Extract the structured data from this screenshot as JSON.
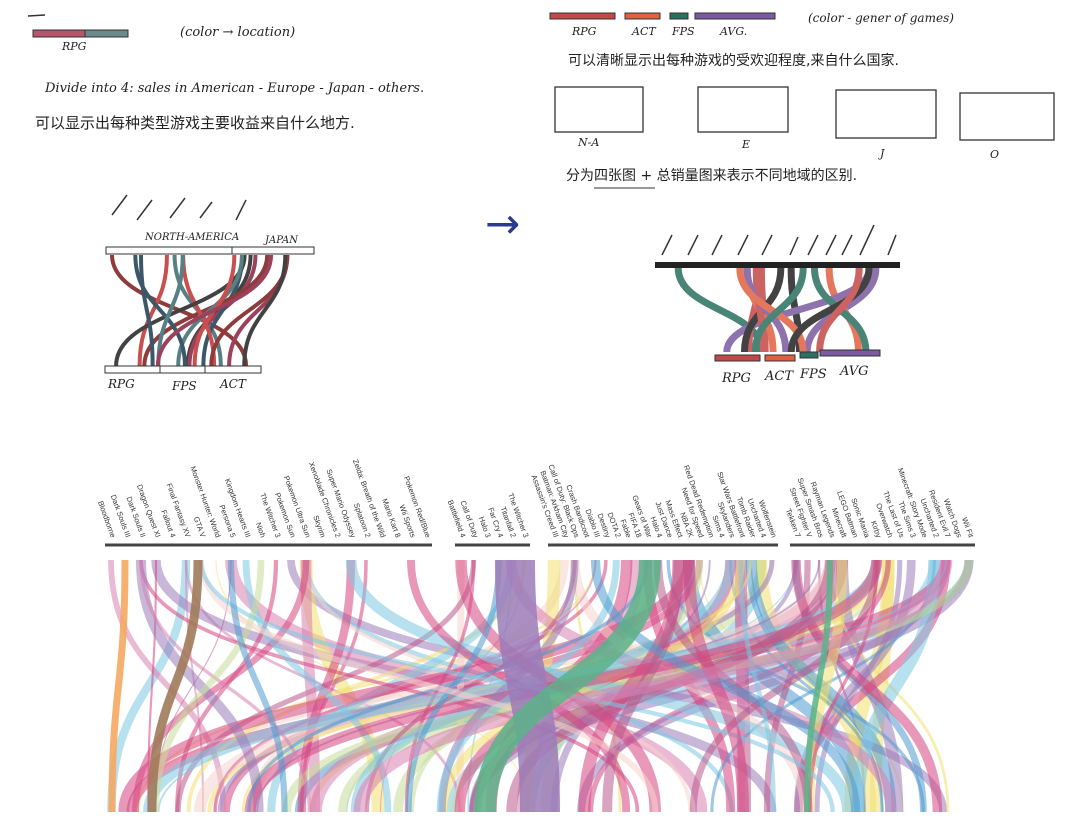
{
  "left_sketch": {
    "legend_label": "RPG",
    "note": "(color → location)",
    "description": "Divide into 4: sales in American - Europe - Japan - others.",
    "chinese_note": "可以显示出每种类型游戏主要收益来自什么地方.",
    "top_labels": [
      "NORTH-AMERICA",
      "JAPAN"
    ],
    "bottom_labels": [
      "RPG",
      "FPS",
      "ACT"
    ]
  },
  "arrow": "→",
  "right_sketch": {
    "legend_labels": [
      "RPG",
      "ACT",
      "FPS",
      "AVG."
    ],
    "note": "(color - gener of games)",
    "chinese_note": "可以清晰显示出每种游戏的受欢迎程度,来自什么国家.",
    "panel_labels": [
      "N-A",
      "E",
      "J",
      "O"
    ],
    "chinese_note_2": "分为四张图 + 总销量图来表示不同地域的区别.",
    "bottom_labels": [
      "RPG",
      "ACT",
      "FPS",
      "AVG"
    ]
  },
  "flow_chart": {
    "groups": [
      [
        "Bloodborne",
        "Dark Souls III",
        "Dark Souls II",
        "Dragon Quest XI",
        "Fallout 4",
        "Final Fantasy XV",
        "GTA V",
        "Monster Hunter: World",
        "Persona 5",
        "Kingdom Hearts III",
        "Nioh",
        "The Witcher 3",
        "Pokemon Sun",
        "Pokemon Ultra Sun",
        "Skyrim",
        "Xenoblade Chronicles 2",
        "Super Mario Odyssey",
        "Splatoon 2",
        "Zelda: Breath of the Wild",
        "Mario Kart 8",
        "Wii Sports",
        "Pokemon Red/Blue"
      ],
      [
        "Battlefield 4",
        "Call of Duty",
        "Halo 3",
        "Far Cry 4",
        "Titanfall 2",
        "The Witcher 3"
      ],
      [
        "Assassin's Creed III",
        "Batman: Arkham City",
        "Call of Duty: Black Ops",
        "Crash Bandicoot",
        "Diablo III",
        "Destiny",
        "DOTA 2",
        "Fable",
        "FIFA 18",
        "Gears of War",
        "Halo 4",
        "Just Dance",
        "Mass Effect",
        "NBA 2K",
        "Need for Speed",
        "Red Dead Redemption",
        "Sims 4",
        "Skylanders",
        "Star Wars Battlefront",
        "Tomb Raider",
        "Uncharted 4",
        "Wolfenstein"
      ],
      [
        "Tekken 7",
        "Street Fighter V",
        "Super Smash Bros",
        "Rayman Legends",
        "Minecraft",
        "LEGO Batman",
        "Sonic Mania",
        "Kirby",
        "Overwatch",
        "The Last of Us",
        "The Sims 3",
        "Minecraft: Story Mode",
        "Uncharted 2",
        "Resident Evil 7",
        "Watch Dogs",
        "Wii Fit"
      ]
    ]
  }
}
